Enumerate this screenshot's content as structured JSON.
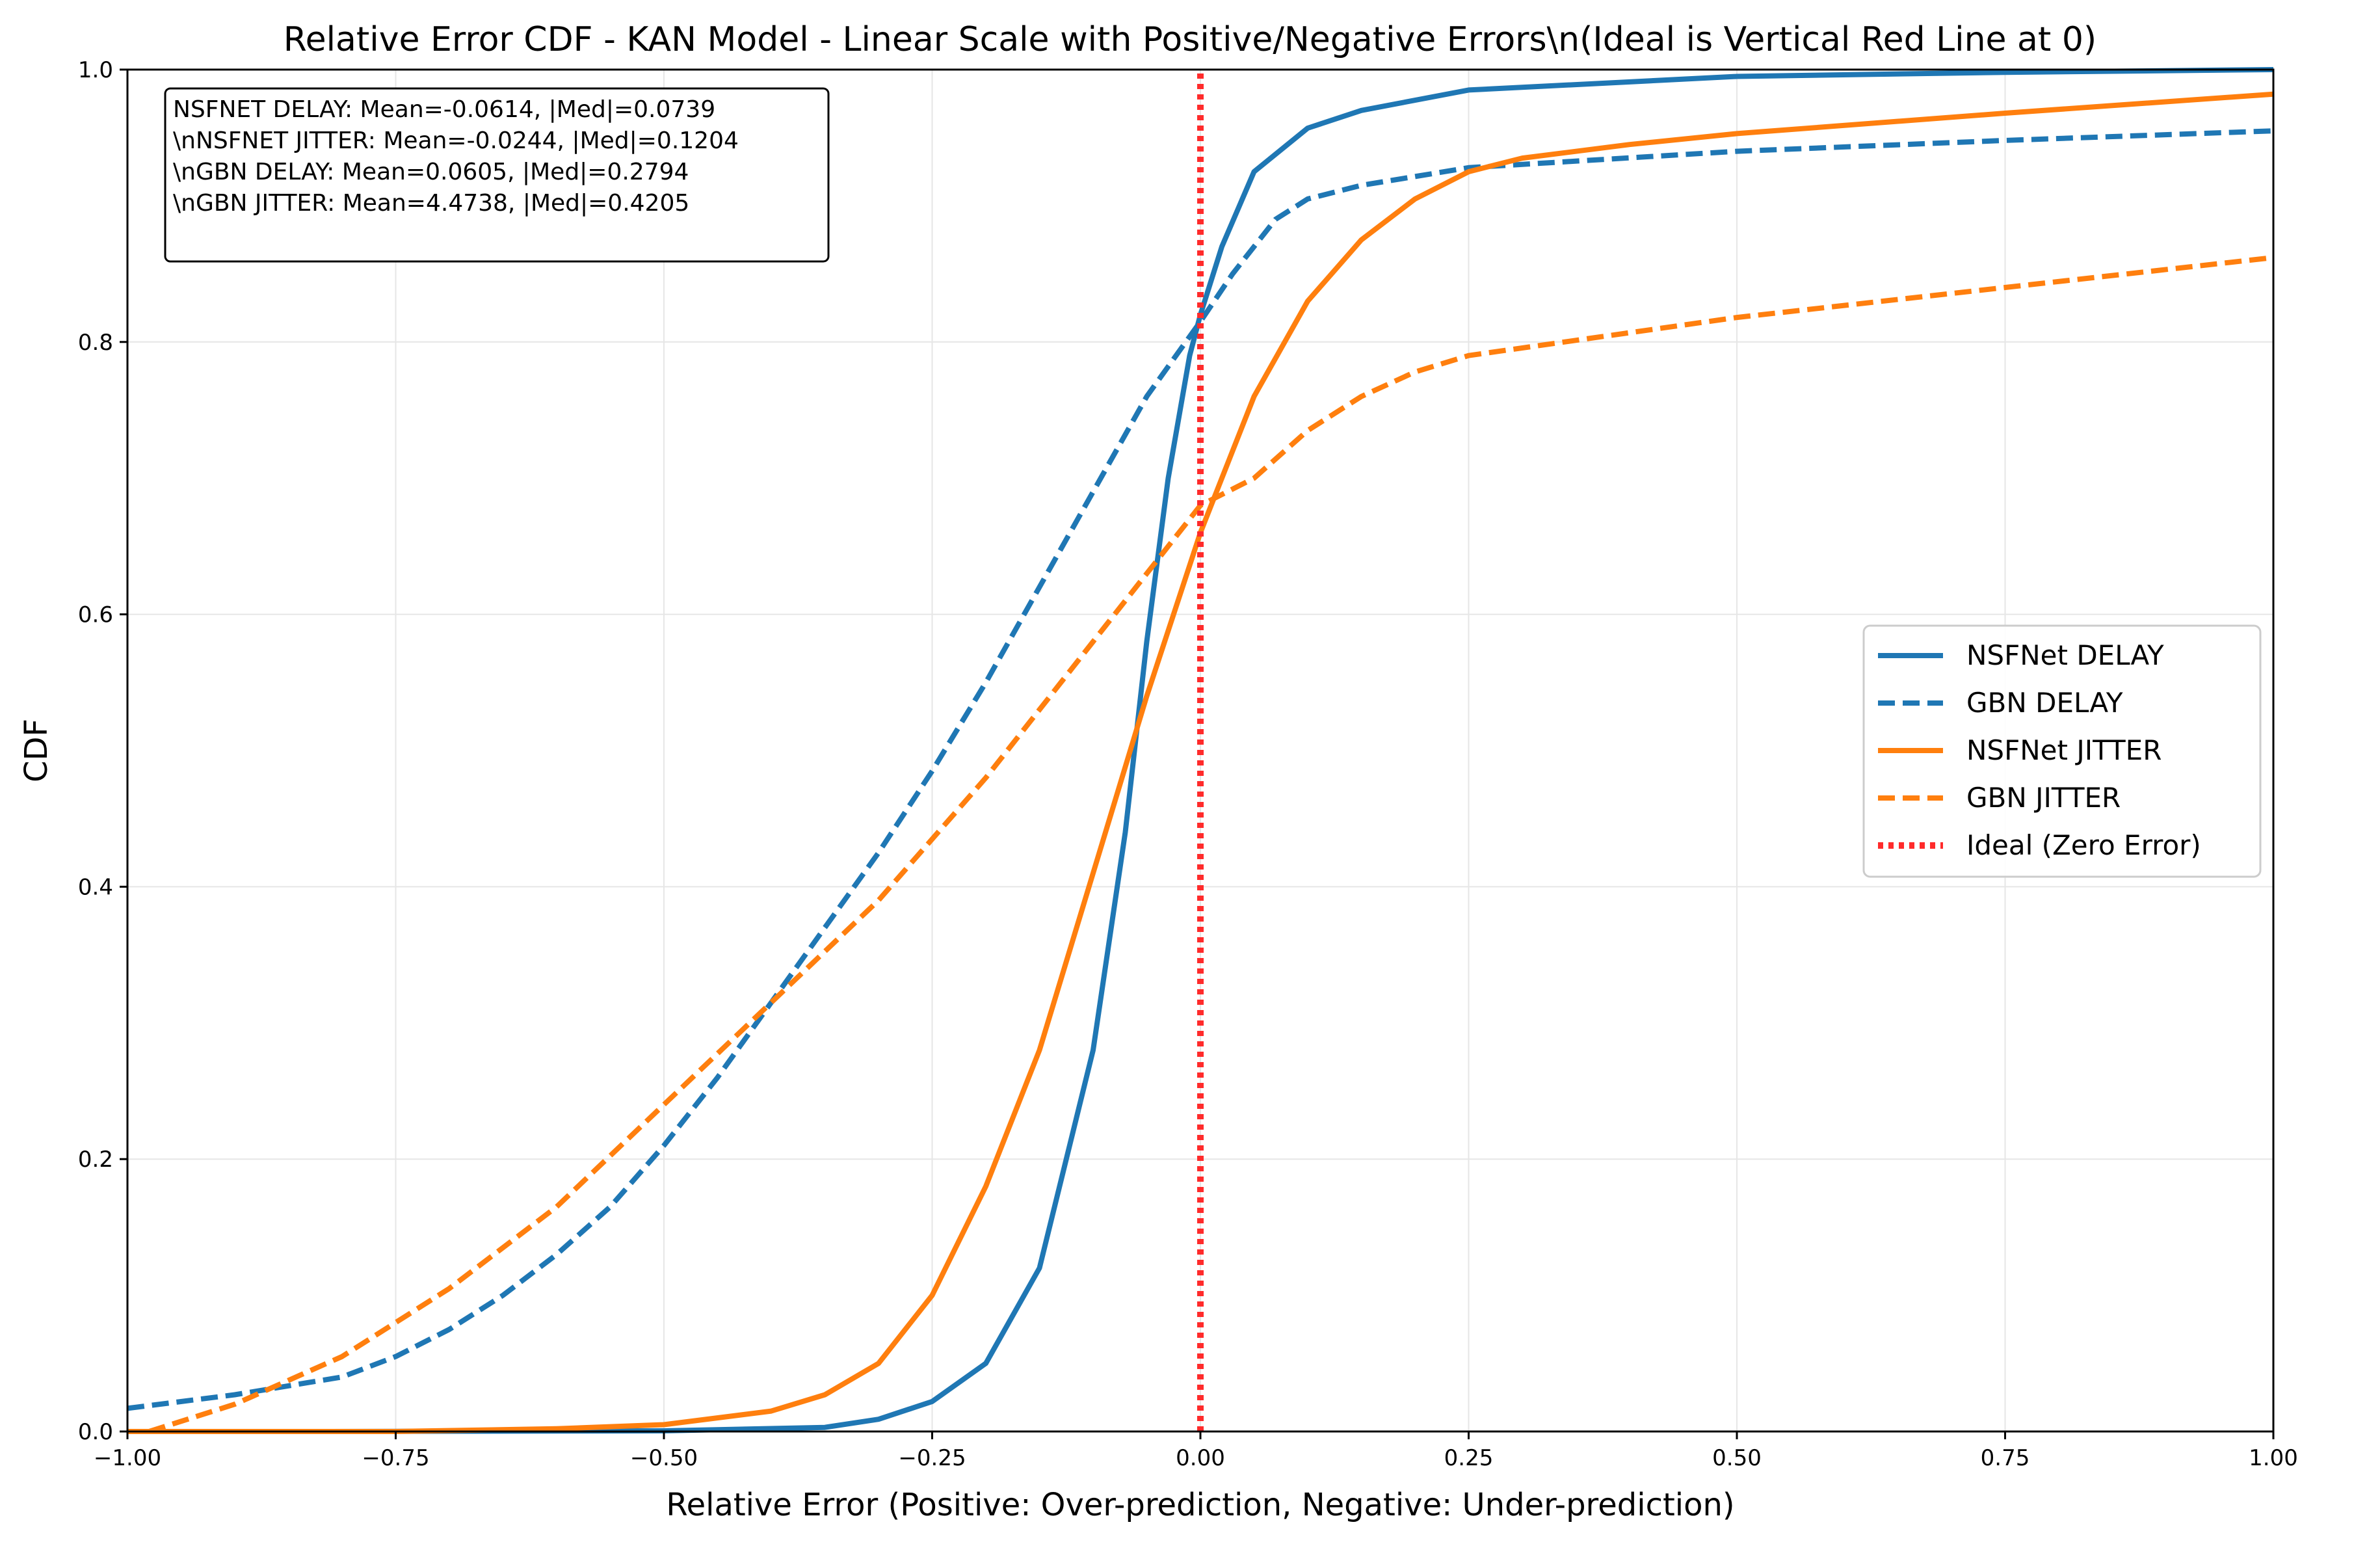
{
  "chart_data": {
    "type": "line",
    "title": "Relative Error CDF - KAN Model - Linear Scale with Positive/Negative Errors\\n(Ideal is Vertical Red Line at 0)",
    "xlabel": "Relative Error (Positive: Over-prediction, Negative: Under-prediction)",
    "ylabel": "CDF",
    "xlim": [
      -1.0,
      1.0
    ],
    "ylim": [
      0.0,
      1.0
    ],
    "x_ticks": [
      "−1.00",
      "−0.75",
      "−0.50",
      "−0.25",
      "0.00",
      "0.25",
      "0.50",
      "0.75",
      "1.00"
    ],
    "y_ticks": [
      "0.0",
      "0.2",
      "0.4",
      "0.6",
      "0.8",
      "1.0"
    ],
    "grid": true,
    "legend_position": "center-right",
    "stats_box_lines": [
      "NSFNET DELAY: Mean=-0.0614, |Med|=0.0739",
      "\\nNSFNET JITTER: Mean=-0.0244, |Med|=0.1204",
      "\\nGBN DELAY: Mean=0.0605, |Med|=0.2794",
      "\\nGBN JITTER: Mean=4.4738, |Med|=0.4205"
    ],
    "series": [
      {
        "name": "NSFNet DELAY",
        "color": "#1f77b4",
        "style": "solid",
        "points": [
          [
            -0.82,
            0.0
          ],
          [
            -0.5,
            0.0005
          ],
          [
            -0.35,
            0.003
          ],
          [
            -0.3,
            0.009
          ],
          [
            -0.25,
            0.022
          ],
          [
            -0.2,
            0.05
          ],
          [
            -0.15,
            0.12
          ],
          [
            -0.1,
            0.28
          ],
          [
            -0.07,
            0.44
          ],
          [
            -0.05,
            0.58
          ],
          [
            -0.03,
            0.7
          ],
          [
            -0.01,
            0.79
          ],
          [
            0.0,
            0.82
          ],
          [
            0.02,
            0.87
          ],
          [
            0.05,
            0.925
          ],
          [
            0.1,
            0.957
          ],
          [
            0.15,
            0.97
          ],
          [
            0.25,
            0.985
          ],
          [
            0.5,
            0.995
          ],
          [
            0.75,
            0.998
          ],
          [
            1.0,
            1.0
          ]
        ]
      },
      {
        "name": "GBN DELAY",
        "color": "#1f77b4",
        "style": "dashed",
        "points": [
          [
            -1.0,
            0.017
          ],
          [
            -0.9,
            0.027
          ],
          [
            -0.8,
            0.04
          ],
          [
            -0.75,
            0.055
          ],
          [
            -0.7,
            0.075
          ],
          [
            -0.65,
            0.1
          ],
          [
            -0.6,
            0.13
          ],
          [
            -0.55,
            0.165
          ],
          [
            -0.5,
            0.21
          ],
          [
            -0.45,
            0.26
          ],
          [
            -0.4,
            0.315
          ],
          [
            -0.35,
            0.37
          ],
          [
            -0.3,
            0.425
          ],
          [
            -0.25,
            0.485
          ],
          [
            -0.2,
            0.55
          ],
          [
            -0.15,
            0.62
          ],
          [
            -0.1,
            0.69
          ],
          [
            -0.05,
            0.76
          ],
          [
            0.0,
            0.815
          ],
          [
            0.03,
            0.85
          ],
          [
            0.07,
            0.89
          ],
          [
            0.1,
            0.905
          ],
          [
            0.15,
            0.915
          ],
          [
            0.25,
            0.928
          ],
          [
            0.5,
            0.94
          ],
          [
            0.75,
            0.948
          ],
          [
            1.0,
            0.955
          ]
        ]
      },
      {
        "name": "NSFNet JITTER",
        "color": "#ff7f0e",
        "style": "solid",
        "points": [
          [
            -1.0,
            0.0
          ],
          [
            -0.75,
            0.0
          ],
          [
            -0.6,
            0.002
          ],
          [
            -0.5,
            0.005
          ],
          [
            -0.4,
            0.015
          ],
          [
            -0.35,
            0.027
          ],
          [
            -0.3,
            0.05
          ],
          [
            -0.25,
            0.1
          ],
          [
            -0.2,
            0.18
          ],
          [
            -0.15,
            0.28
          ],
          [
            -0.1,
            0.41
          ],
          [
            -0.05,
            0.54
          ],
          [
            0.0,
            0.66
          ],
          [
            0.03,
            0.72
          ],
          [
            0.05,
            0.76
          ],
          [
            0.1,
            0.83
          ],
          [
            0.15,
            0.875
          ],
          [
            0.2,
            0.905
          ],
          [
            0.25,
            0.925
          ],
          [
            0.3,
            0.935
          ],
          [
            0.4,
            0.945
          ],
          [
            0.5,
            0.953
          ],
          [
            0.75,
            0.968
          ],
          [
            1.0,
            0.982
          ]
        ]
      },
      {
        "name": "GBN JITTER",
        "color": "#ff7f0e",
        "style": "dashed",
        "points": [
          [
            -0.98,
            0.0
          ],
          [
            -0.9,
            0.02
          ],
          [
            -0.8,
            0.055
          ],
          [
            -0.7,
            0.105
          ],
          [
            -0.6,
            0.165
          ],
          [
            -0.5,
            0.24
          ],
          [
            -0.4,
            0.315
          ],
          [
            -0.3,
            0.39
          ],
          [
            -0.2,
            0.48
          ],
          [
            -0.1,
            0.58
          ],
          [
            -0.05,
            0.63
          ],
          [
            0.0,
            0.68
          ],
          [
            0.05,
            0.7
          ],
          [
            0.1,
            0.735
          ],
          [
            0.15,
            0.76
          ],
          [
            0.2,
            0.778
          ],
          [
            0.25,
            0.79
          ],
          [
            0.5,
            0.818
          ],
          [
            0.75,
            0.84
          ],
          [
            1.0,
            0.862
          ]
        ]
      },
      {
        "name": "Ideal (Zero Error)",
        "color": "#ff2b2b",
        "style": "dotted",
        "points": [
          [
            0.0,
            0.0
          ],
          [
            0.0,
            1.0
          ]
        ]
      }
    ]
  }
}
